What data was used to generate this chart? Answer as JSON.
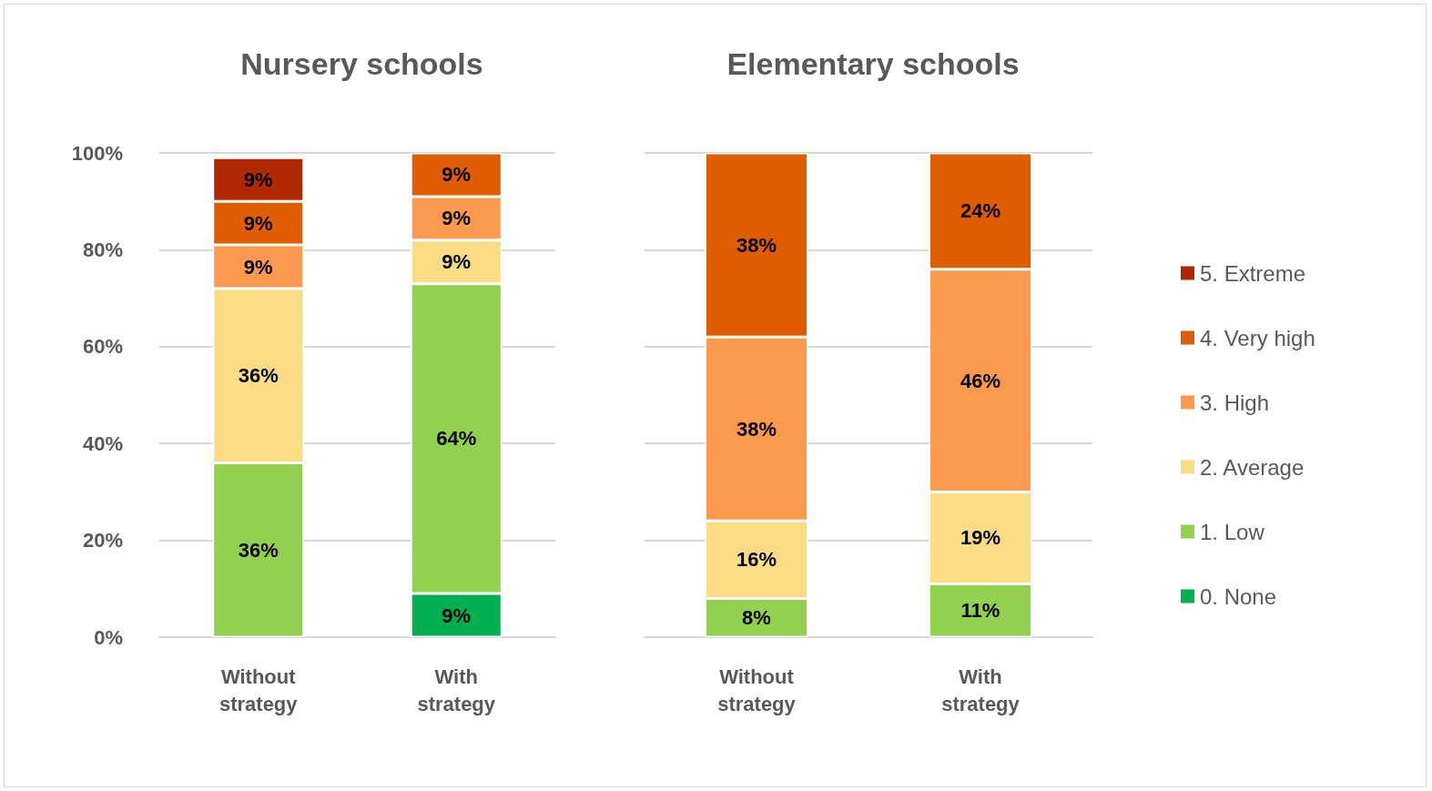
{
  "chart_data": [
    {
      "type": "bar",
      "title": "Nursery schools",
      "stacked": true,
      "categories": [
        "Without\nstrategy",
        "With\nstrategy"
      ],
      "ylim": [
        0,
        100
      ],
      "yticks": [
        {
          "value": 0,
          "label": "0%"
        },
        {
          "value": 20,
          "label": "20%"
        },
        {
          "value": 40,
          "label": "40%"
        },
        {
          "value": 60,
          "label": "60%"
        },
        {
          "value": 80,
          "label": "80%"
        },
        {
          "value": 100,
          "label": "100%"
        }
      ],
      "grid": "y",
      "legend": false,
      "series": [
        {
          "color": "#00b050",
          "values": [
            null,
            9
          ],
          "value_labels": [
            null,
            "9%"
          ]
        },
        {
          "color": "#92d050",
          "values": [
            36,
            64
          ],
          "value_labels": [
            "36%",
            "64%"
          ]
        },
        {
          "color": "#fcdc85",
          "values": [
            36,
            9
          ],
          "value_labels": [
            "36%",
            "9%"
          ]
        },
        {
          "color": "#fd9a50",
          "values": [
            9,
            9
          ],
          "value_labels": [
            "9%",
            "9%"
          ]
        },
        {
          "color": "#e05c00",
          "values": [
            9,
            9
          ],
          "value_labels": [
            "9%",
            "9%"
          ]
        },
        {
          "color": "#b02800",
          "values": [
            9,
            null
          ],
          "value_labels": [
            "9%",
            null
          ]
        }
      ]
    },
    {
      "type": "bar",
      "title": "Elementary schools",
      "stacked": true,
      "categories": [
        "Without\nstrategy",
        "With\nstrategy"
      ],
      "ylim": [
        0,
        100
      ],
      "yticks": [
        {
          "value": 0,
          "label": null
        },
        {
          "value": 20,
          "label": null
        },
        {
          "value": 40,
          "label": null
        },
        {
          "value": 60,
          "label": null
        },
        {
          "value": 80,
          "label": null
        },
        {
          "value": 100,
          "label": null
        }
      ],
      "grid": "y",
      "tick_labels": "x",
      "legend": "right",
      "series": [
        {
          "name": "0. None",
          "color": "#00b050",
          "values": [
            null,
            null
          ],
          "value_labels": [
            null,
            null
          ]
        },
        {
          "name": "1. Low",
          "color": "#92d050",
          "values": [
            8,
            11
          ],
          "value_labels": [
            "8%",
            "11%"
          ]
        },
        {
          "name": "2. Average",
          "color": "#fcdc85",
          "values": [
            16,
            19
          ],
          "value_labels": [
            "16%",
            "19%"
          ]
        },
        {
          "name": "3. High",
          "color": "#fd9a50",
          "values": [
            38,
            46
          ],
          "value_labels": [
            "38%",
            "46%"
          ]
        },
        {
          "name": "4. Very high",
          "color": "#e05c00",
          "values": [
            38,
            24
          ],
          "value_labels": [
            "38%",
            "24%"
          ]
        },
        {
          "name": "5. Extreme",
          "color": "#b02800",
          "values": [
            null,
            null
          ],
          "value_labels": [
            null,
            null
          ]
        }
      ]
    }
  ]
}
